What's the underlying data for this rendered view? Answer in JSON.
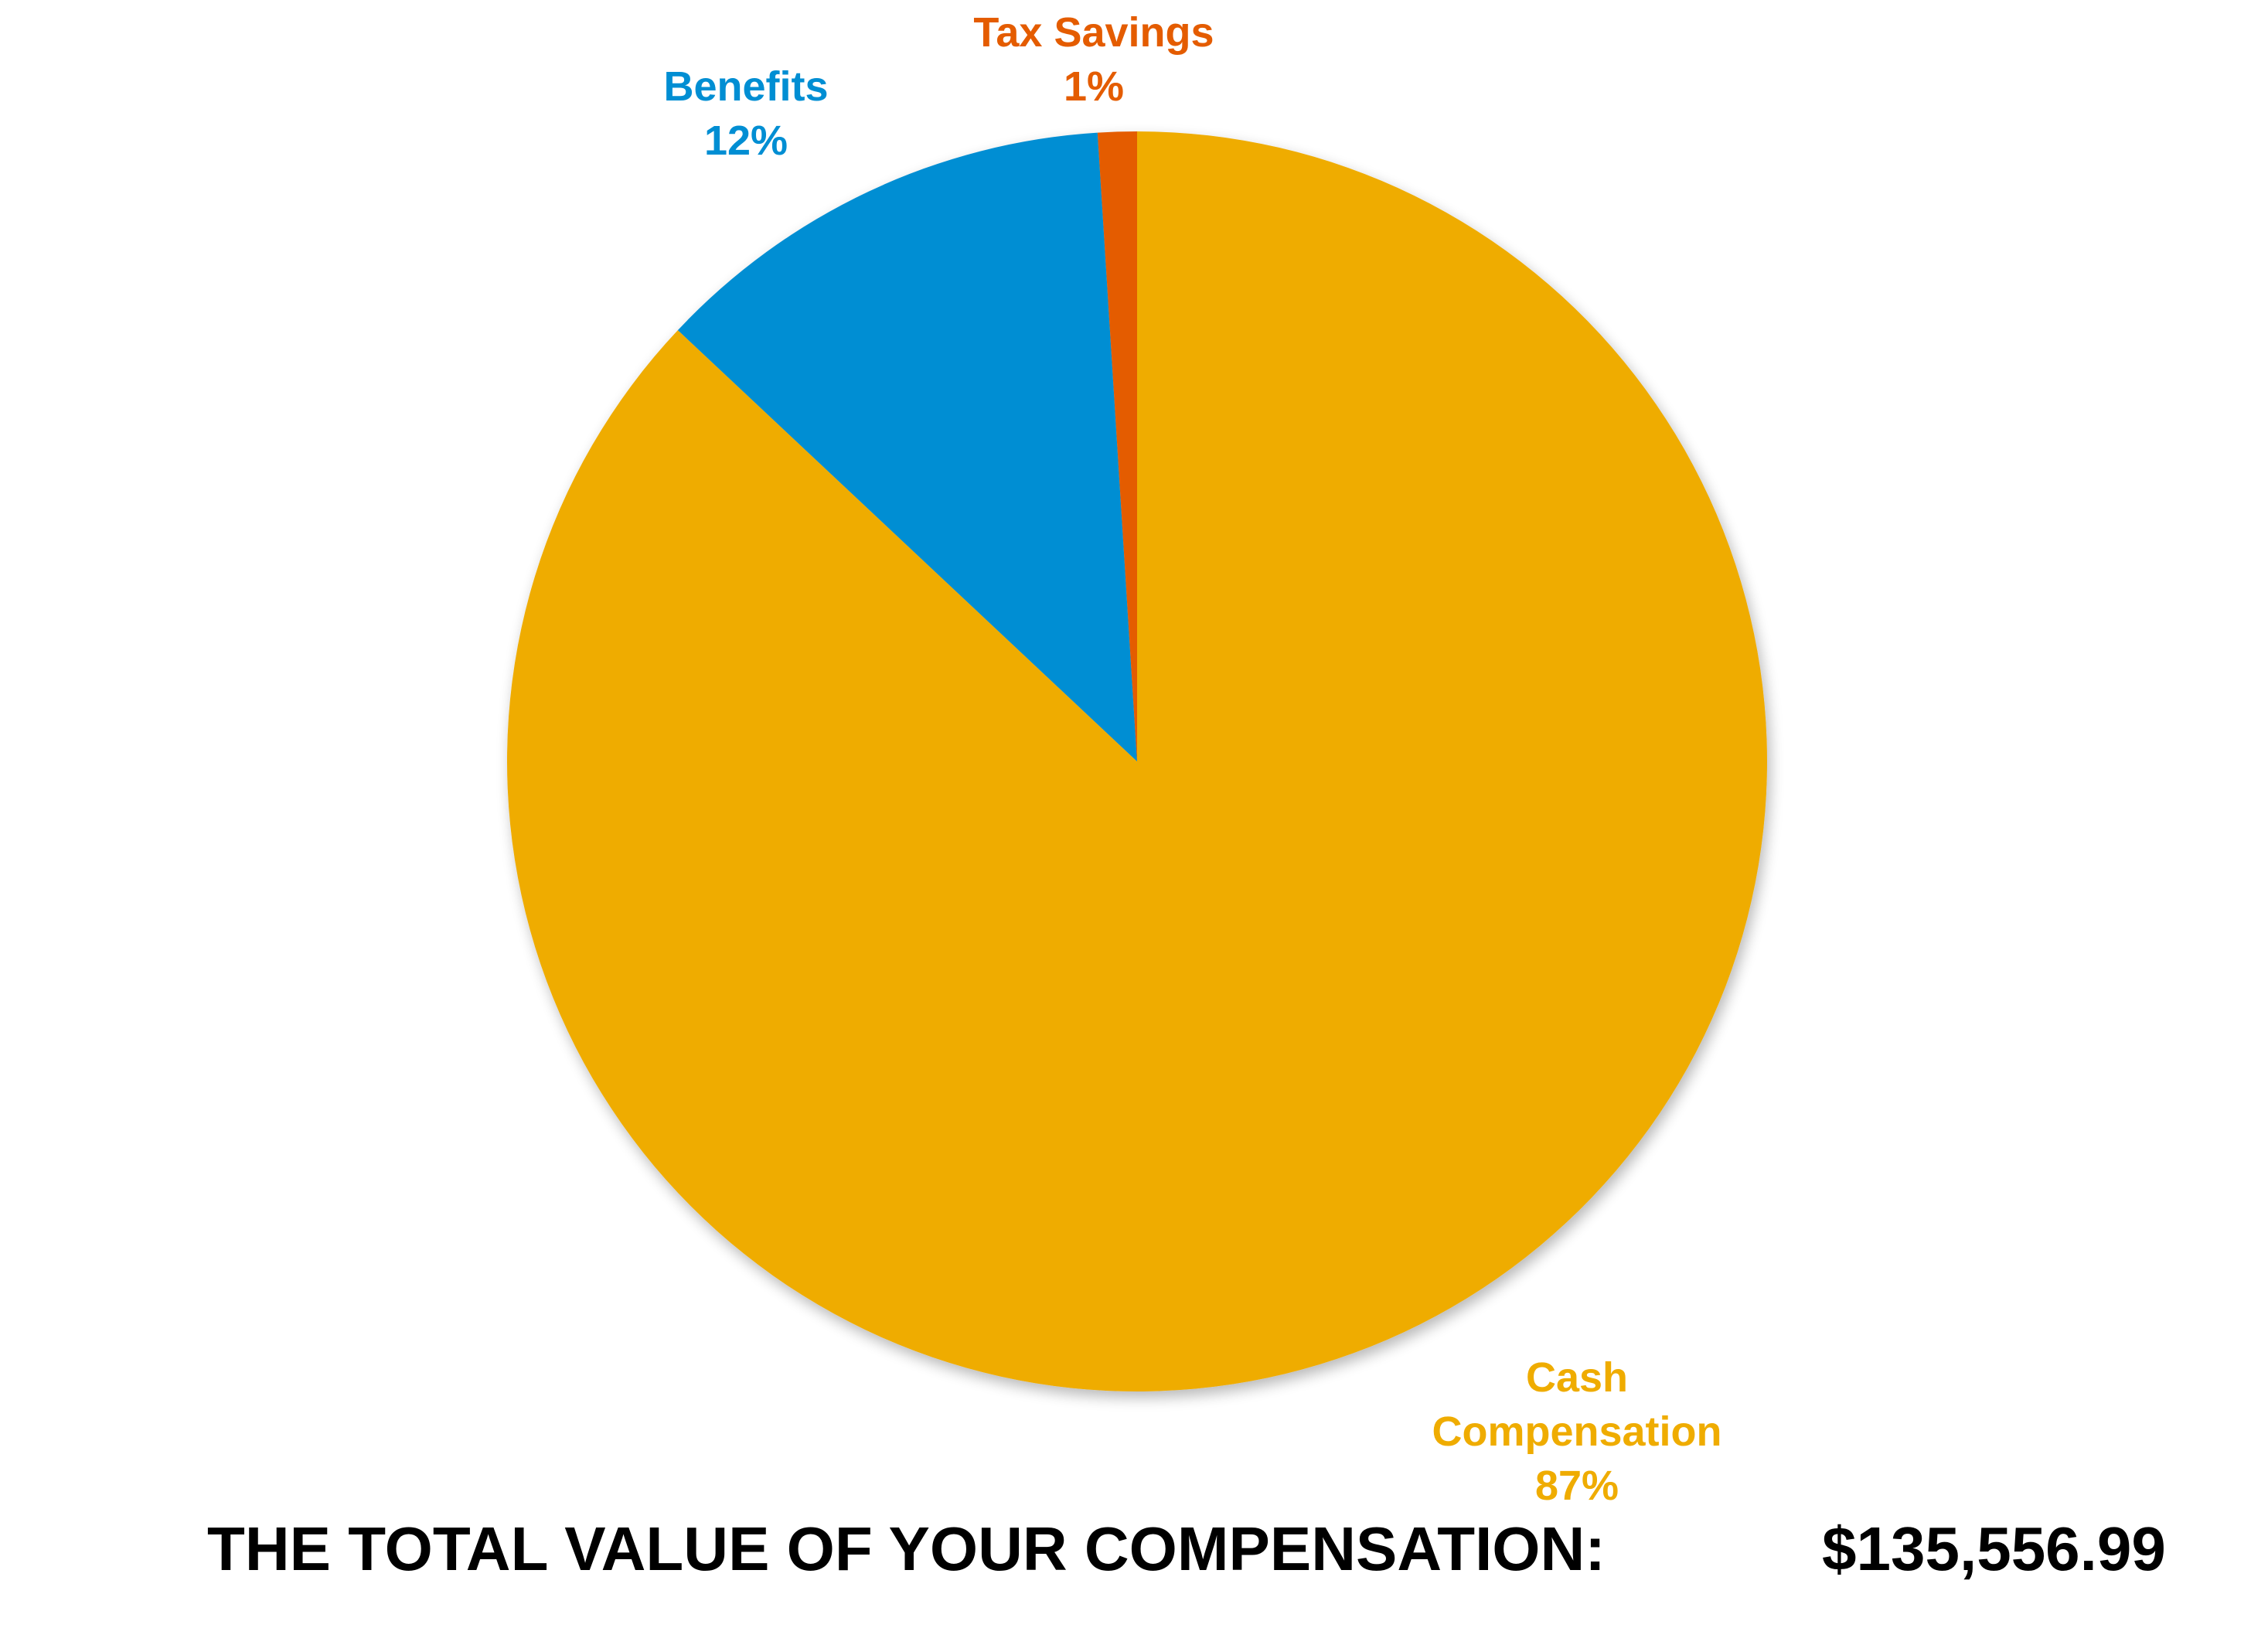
{
  "chart_data": {
    "type": "pie",
    "slices": [
      {
        "name": "Cash Compensation",
        "label_lines": [
          "Cash",
          "Compensation"
        ],
        "value": 87,
        "pct_label": "87%",
        "color": "#EFAC00"
      },
      {
        "name": "Benefits",
        "label_lines": [
          "Benefits"
        ],
        "value": 12,
        "pct_label": "12%",
        "color": "#008ED3"
      },
      {
        "name": "Tax Savings",
        "label_lines": [
          "Tax Savings"
        ],
        "value": 1,
        "pct_label": "1%",
        "color": "#E45C00"
      }
    ]
  },
  "total": {
    "label": "THE TOTAL VALUE OF YOUR COMPENSATION:",
    "value": "$135,556.99"
  }
}
